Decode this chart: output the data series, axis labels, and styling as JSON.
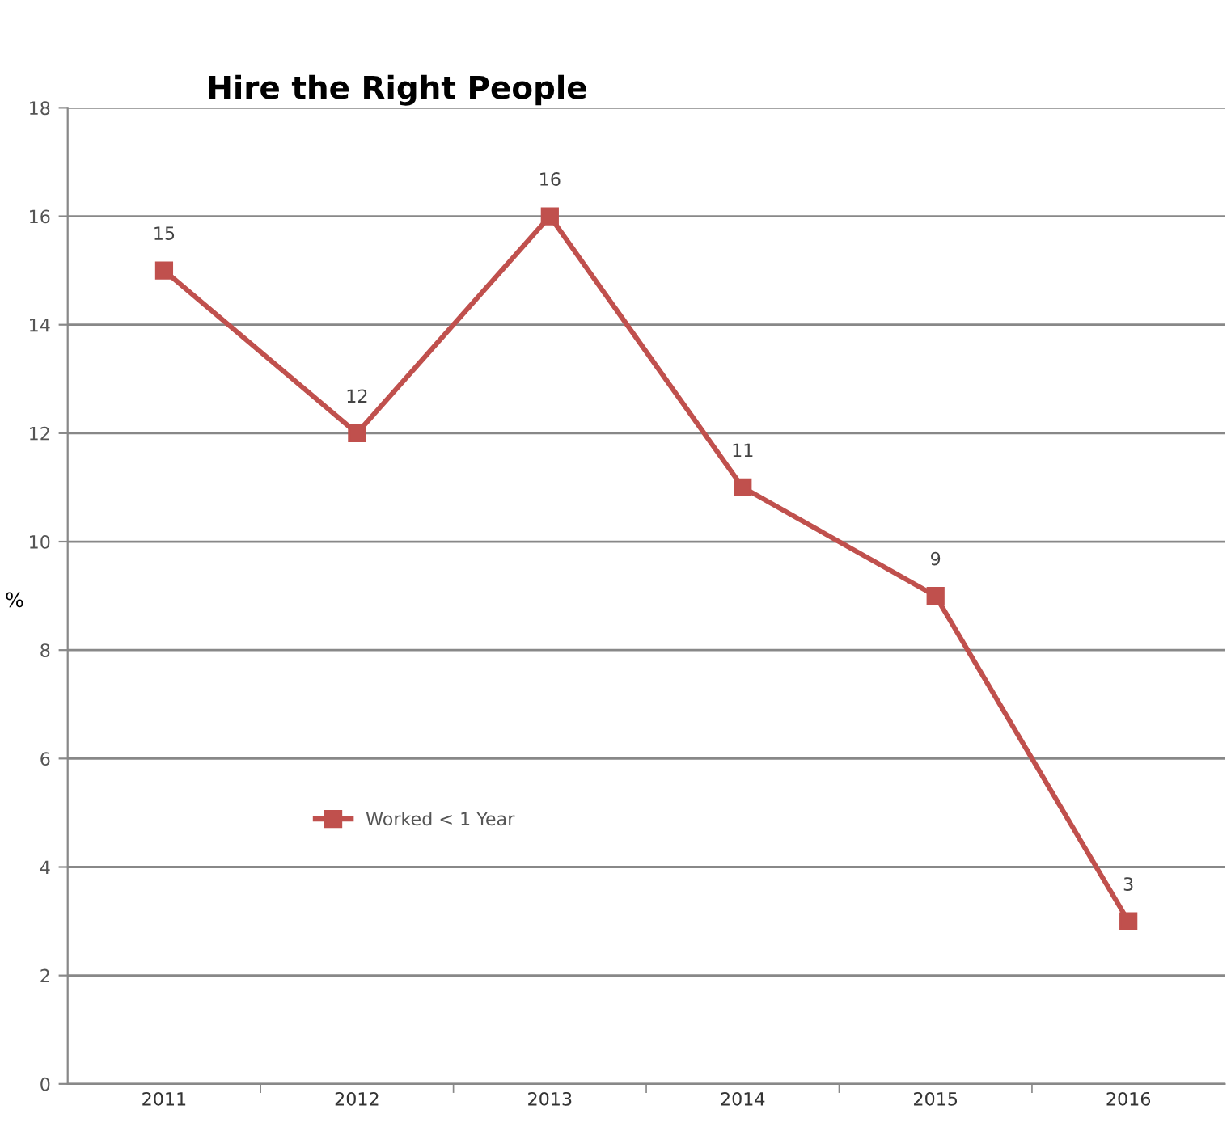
{
  "chart_data": {
    "type": "line",
    "title": "Hire the Right People",
    "ylabel": "%",
    "categories": [
      "2011",
      "2012",
      "2013",
      "2014",
      "2015",
      "2016"
    ],
    "series": [
      {
        "name": "Worked < 1 Year",
        "color": "#c0504d",
        "values": [
          15,
          12,
          16,
          11,
          9,
          3
        ]
      }
    ],
    "ylim": [
      0,
      18
    ],
    "yticks": [
      0,
      2,
      4,
      6,
      8,
      10,
      12,
      14,
      16,
      18
    ],
    "grid": "y",
    "legend": "left",
    "marker": "square",
    "line_style": "solid",
    "data_labels": true
  }
}
